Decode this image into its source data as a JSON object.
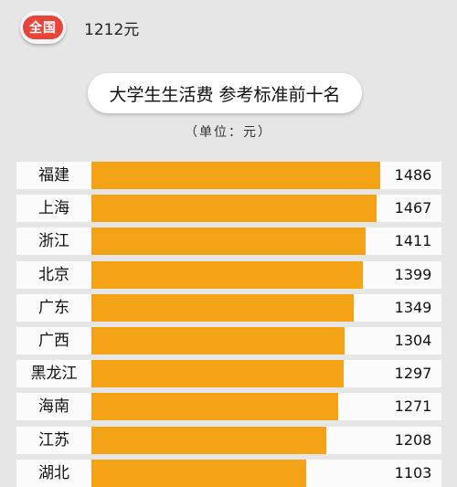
{
  "national": {
    "badge_label": "全国",
    "value_text": "1212元"
  },
  "title": "大学生生活费 参考标准前十名",
  "unit": "（单位：元）",
  "colors": {
    "bar": "#f5a316",
    "badge": "#e8443a",
    "background": "#e6e6e6",
    "row": "#fbfbfb"
  },
  "chart_data": {
    "type": "bar",
    "orientation": "horizontal",
    "title": "大学生生活费 参考标准前十名",
    "unit": "（单位：元）",
    "categories": [
      "福建",
      "上海",
      "浙江",
      "北京",
      "广东",
      "广西",
      "黑龙江",
      "海南",
      "江苏",
      "湖北"
    ],
    "values": [
      1486,
      1467,
      1411,
      1399,
      1349,
      1304,
      1297,
      1271,
      1208,
      1103
    ],
    "xlim": [
      0,
      1486
    ],
    "grid": false,
    "legend": "none"
  }
}
